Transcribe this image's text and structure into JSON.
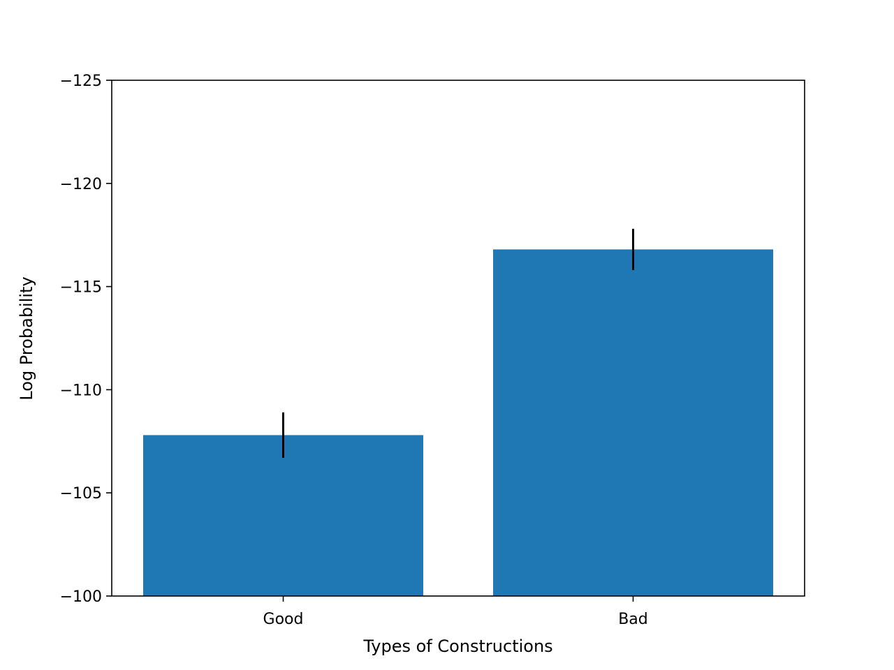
{
  "chart_data": {
    "type": "bar",
    "title": "",
    "xlabel": "Types of Constructions",
    "ylabel": "Log Probability",
    "categories": [
      "Good",
      "Bad"
    ],
    "values": [
      -107.8,
      -116.8
    ],
    "error": [
      1.1,
      1.0
    ],
    "ylim": [
      -100,
      -125
    ],
    "y_inverted": true,
    "y_ticks": [
      -100,
      -105,
      -110,
      -115,
      -120,
      -125
    ],
    "y_tick_labels": [
      "−100",
      "−105",
      "−110",
      "−115",
      "−120",
      "−125"
    ],
    "bar_color": "#1f77b4",
    "error_color": "#000000",
    "grid": false,
    "legend": "none"
  }
}
